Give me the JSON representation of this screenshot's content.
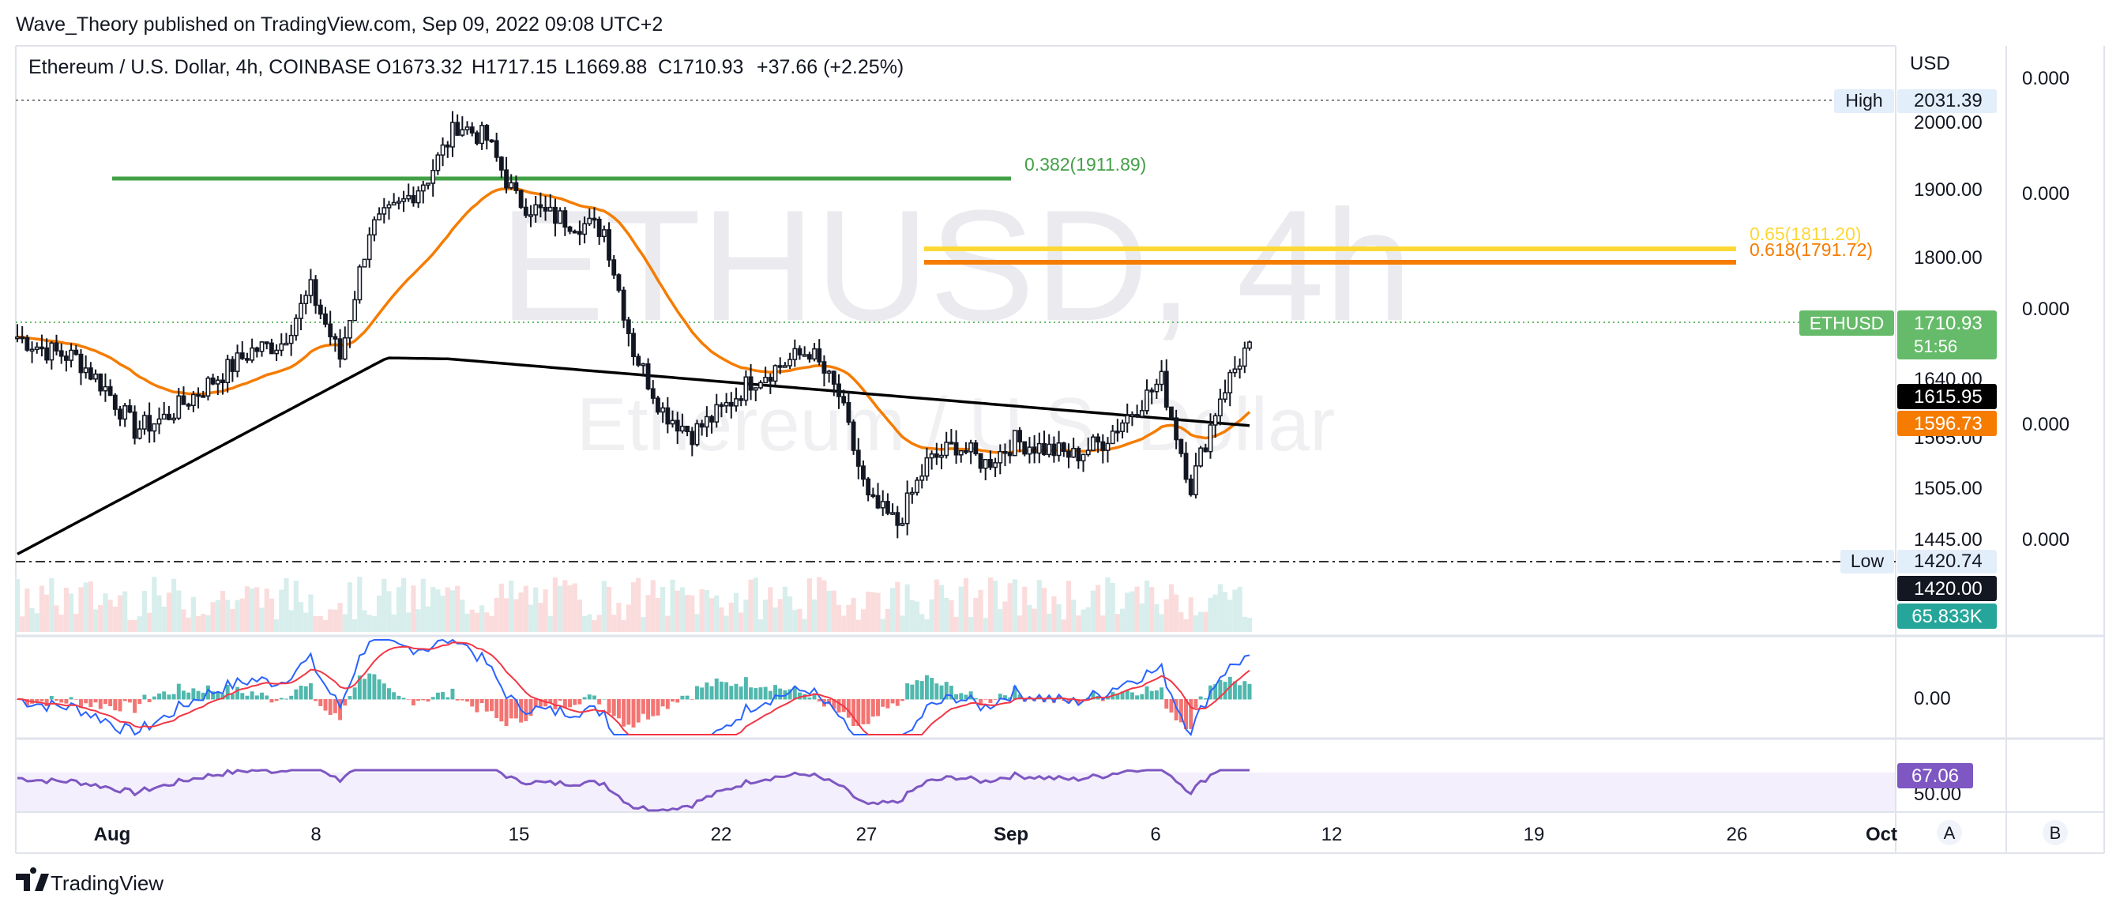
{
  "header": {
    "publisher": "Wave_Theory published on TradingView.com, Sep 09, 2022 09:08 UTC+2",
    "symbol": "Ethereum / U.S. Dollar, 4h, COINBASE",
    "open": "O1673.32",
    "high": "H1717.15",
    "low": "L1669.88",
    "close": "C1710.93",
    "change": "+37.66 (+2.25%)"
  },
  "watermark": {
    "line1": "ETHUSD, 4h",
    "line2": "Ethereum / U.S. Dollar"
  },
  "price_axis": {
    "currency": "USD",
    "ticks": [
      "2000.00",
      "1900.00",
      "1800.00",
      "1640.00",
      "1565.00",
      "1505.00",
      "1445.00"
    ],
    "macd_tick": "0.00",
    "rsi_tick": "50.00"
  },
  "right_axis": {
    "ticks": [
      "0.000",
      "0.000",
      "0.000",
      "0.000",
      "0.000"
    ]
  },
  "time_axis": {
    "labels": [
      "Aug",
      "8",
      "15",
      "22",
      "27",
      "Sep",
      "6",
      "12",
      "19",
      "26",
      "Oct"
    ]
  },
  "labels": {
    "high_tag": "High",
    "high_value": "2031.39",
    "low_tag": "Low",
    "low_value": "1420.74",
    "symbol_tag": "ETHUSD",
    "last_price": "1710.93",
    "countdown": "51:56",
    "ma200_value": "1615.95",
    "ma50_value": "1596.73",
    "cursor_price": "1420.00",
    "volume": "65.833K",
    "rsi_value": "67.06"
  },
  "fib": {
    "l382": "0.382(1911.89)",
    "l618": "0.618(1791.72)",
    "l65": "0.65(1811.20)"
  },
  "scale_buttons": {
    "a": "A",
    "b": "B"
  },
  "footer": {
    "brand": "TradingView"
  },
  "colors": {
    "up": "#26a69a",
    "down": "#ef5350",
    "ema50": "#f57c00",
    "ma200": "#000000",
    "fib382": "#43a047",
    "fib618": "#f57c00",
    "fib65": "#fdd835",
    "last_price": "#66bb6a",
    "rsi": "#7e57c2",
    "macd": "#2962ff",
    "signal": "#f23645"
  },
  "chart_data": {
    "type": "candlestick",
    "timeframe": "4h",
    "ylim": [
      1420,
      2031.39
    ],
    "x_labels": [
      "Aug",
      "8",
      "15",
      "22",
      "27",
      "Sep",
      "6",
      "12",
      "19",
      "26",
      "Oct"
    ],
    "levels": {
      "high": 2031.39,
      "low": 1420.74,
      "fib_0.382": 1911.89,
      "fib_0.618": 1791.72,
      "fib_0.65": 1811.2
    },
    "ohlc_last": {
      "open": 1673.32,
      "high": 1717.15,
      "low": 1669.88,
      "close": 1710.93
    },
    "close_path": [
      {
        "x": "Jul 29",
        "y": 1718
      },
      {
        "x": "Jul 30",
        "y": 1700
      },
      {
        "x": "Jul 31",
        "y": 1690
      },
      {
        "x": "Aug 1",
        "y": 1650
      },
      {
        "x": "Aug 2",
        "y": 1595
      },
      {
        "x": "Aug 3",
        "y": 1610
      },
      {
        "x": "Aug 4",
        "y": 1640
      },
      {
        "x": "Aug 5",
        "y": 1670
      },
      {
        "x": "Aug 6",
        "y": 1700
      },
      {
        "x": "Aug 7",
        "y": 1710
      },
      {
        "x": "Aug 8",
        "y": 1780
      },
      {
        "x": "Aug 9",
        "y": 1690
      },
      {
        "x": "Aug 10",
        "y": 1860
      },
      {
        "x": "Aug 11",
        "y": 1890
      },
      {
        "x": "Aug 12",
        "y": 1930
      },
      {
        "x": "Aug 13",
        "y": 2000
      },
      {
        "x": "Aug 14",
        "y": 1980
      },
      {
        "x": "Aug 15",
        "y": 1900
      },
      {
        "x": "Aug 16",
        "y": 1880
      },
      {
        "x": "Aug 17",
        "y": 1870
      },
      {
        "x": "Aug 18",
        "y": 1860
      },
      {
        "x": "Aug 19",
        "y": 1700
      },
      {
        "x": "Aug 20",
        "y": 1620
      },
      {
        "x": "Aug 21",
        "y": 1590
      },
      {
        "x": "Aug 22",
        "y": 1620
      },
      {
        "x": "Aug 23",
        "y": 1660
      },
      {
        "x": "Aug 24",
        "y": 1680
      },
      {
        "x": "Aug 25",
        "y": 1700
      },
      {
        "x": "Aug 26",
        "y": 1640
      },
      {
        "x": "Aug 27",
        "y": 1500
      },
      {
        "x": "Aug 28",
        "y": 1470
      },
      {
        "x": "Aug 29",
        "y": 1550
      },
      {
        "x": "Aug 30",
        "y": 1575
      },
      {
        "x": "Aug 31",
        "y": 1550
      },
      {
        "x": "Sep 1",
        "y": 1580
      },
      {
        "x": "Sep 2",
        "y": 1570
      },
      {
        "x": "Sep 3",
        "y": 1560
      },
      {
        "x": "Sep 4",
        "y": 1580
      },
      {
        "x": "Sep 5",
        "y": 1620
      },
      {
        "x": "Sep 6",
        "y": 1660
      },
      {
        "x": "Sep 7",
        "y": 1520
      },
      {
        "x": "Sep 8",
        "y": 1640
      },
      {
        "x": "Sep 9",
        "y": 1710.93
      }
    ],
    "indicators": {
      "ema50_last": 1596.73,
      "ma200_last": 1615.95,
      "volume_last": "65.833K",
      "rsi_last": 67.06
    }
  }
}
